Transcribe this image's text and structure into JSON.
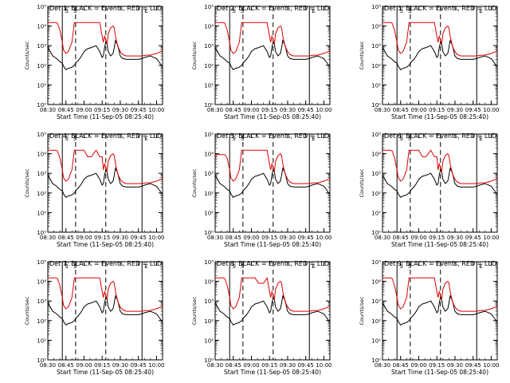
{
  "colors": {
    "events": "#000000",
    "lld": "#e00000",
    "axis": "#000000",
    "background": "#ffffff"
  },
  "time_axis": {
    "tick_labels": [
      "08:30",
      "08:45",
      "09:00",
      "09:15",
      "09:30",
      "09:45",
      "10:00"
    ],
    "tick_minutes": [
      0,
      15,
      30,
      45,
      60,
      75,
      90
    ],
    "range_minutes_after_0830": [
      0,
      95
    ],
    "xlabel": "Start Time (11-Sep-05 08:25:40)"
  },
  "y_axis": {
    "label": "Counts/sec",
    "scale": "log",
    "range": [
      1,
      100000
    ],
    "tick_labels": [
      "10⁰",
      "10¹",
      "10²",
      "10³",
      "10⁴",
      "10⁵"
    ],
    "tick_values": [
      1,
      10,
      100,
      1000,
      10000,
      100000
    ]
  },
  "markers": {
    "solid_lines_minutes": [
      12,
      78
    ],
    "dashed_lines_minutes": [
      23,
      48
    ],
    "flag_labels": [
      "S",
      "S",
      "E"
    ]
  },
  "chart_data": [
    {
      "title": "Det 1: BLACK = Events, RED = LLD",
      "type": "line",
      "lld_variant": 0
    },
    {
      "title": "Det 2: BLACK = Events, RED = LLD",
      "type": "line",
      "lld_variant": 0
    },
    {
      "title": "Det 3: BLACK = Events, RED = LLD",
      "type": "line",
      "lld_variant": 0
    },
    {
      "title": "Det 4: BLACK = Events, RED = LLD",
      "type": "line",
      "lld_variant": 1
    },
    {
      "title": "Det 5: BLACK = Events, RED = LLD",
      "type": "line",
      "lld_variant": 2
    },
    {
      "title": "Det 6: BLACK = Events, RED = LLD",
      "type": "line",
      "lld_variant": 1
    },
    {
      "title": "Det 7: BLACK = Events, RED = LLD",
      "type": "line",
      "lld_variant": 0
    },
    {
      "title": "Det 8: BLACK = Events, RED = LLD",
      "type": "line",
      "lld_variant": 3
    },
    {
      "title": "Det 9: BLACK = Events, RED = LLD",
      "type": "line",
      "lld_variant": 0
    }
  ],
  "series_shape": {
    "x_minutes": [
      0,
      2,
      4,
      6,
      8,
      10,
      12,
      13,
      15,
      17,
      20,
      22,
      24,
      26,
      28,
      30,
      33,
      36,
      40,
      43,
      45,
      46,
      47,
      48,
      49,
      50,
      52,
      54,
      55,
      56,
      58,
      60,
      62,
      65,
      70,
      75,
      78,
      80,
      85,
      90,
      92,
      94,
      95
    ],
    "events": [
      800,
      500,
      300,
      250,
      200,
      150,
      130,
      90,
      60,
      70,
      80,
      100,
      150,
      200,
      300,
      500,
      700,
      800,
      1000,
      500,
      250,
      300,
      800,
      1500,
      1200,
      500,
      300,
      400,
      800,
      1800,
      1000,
      300,
      220,
      200,
      200,
      200,
      220,
      250,
      300,
      220,
      150,
      100,
      90
    ],
    "lld_base": [
      15000,
      15000,
      15000,
      15000,
      14000,
      6000,
      1500,
      600,
      400,
      500,
      1500,
      15000,
      15000,
      15000,
      15000,
      15000,
      15000,
      15000,
      15000,
      15000,
      3000,
      1500,
      3000,
      2000,
      1200,
      4000,
      8000,
      10000,
      8000,
      3000,
      900,
      500,
      350,
      300,
      300,
      300,
      300,
      320,
      330,
      400,
      450,
      500,
      550
    ]
  }
}
